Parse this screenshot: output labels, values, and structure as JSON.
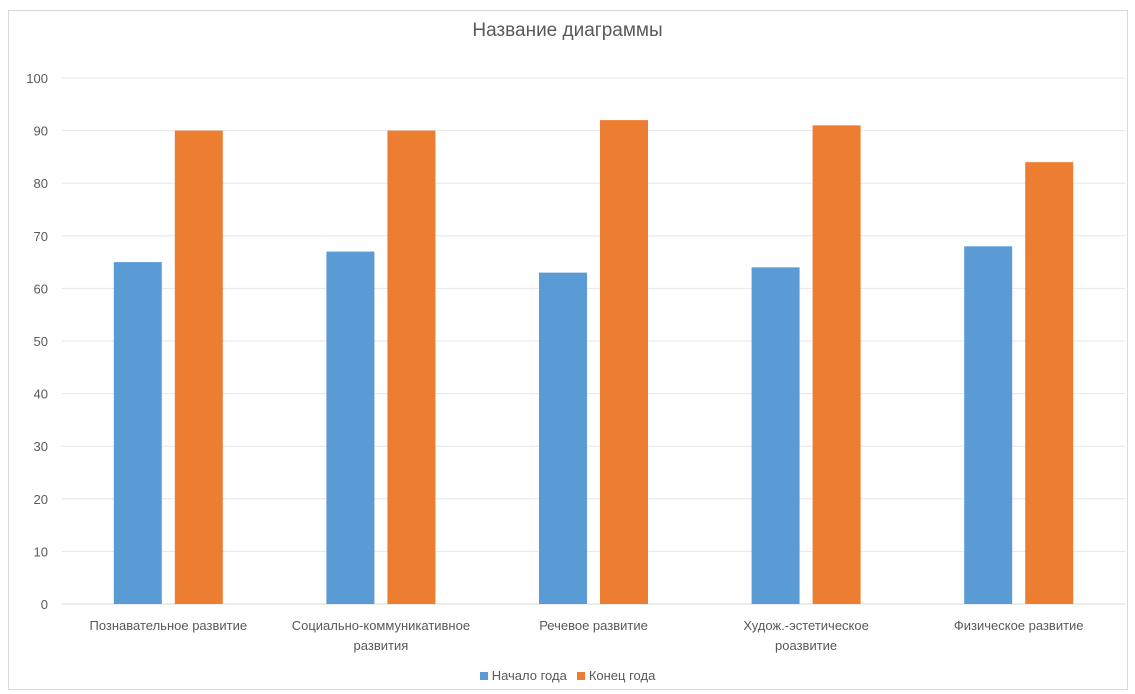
{
  "chart_data": {
    "type": "bar",
    "title": "Название диаграммы",
    "categories": [
      [
        "Познавательное развитие"
      ],
      [
        "Социально-коммуникативное",
        "развития"
      ],
      [
        "Речевое развитие"
      ],
      [
        "Худож.-эстетическое",
        "роазвитие"
      ],
      [
        "Физическое развитие"
      ]
    ],
    "series": [
      {
        "name": "Начало года",
        "values": [
          65,
          67,
          63,
          64,
          68
        ],
        "color": "#5b9bd5"
      },
      {
        "name": "Конец года",
        "values": [
          90,
          90,
          92,
          91,
          84
        ],
        "color": "#ed7d31"
      }
    ],
    "ylim": [
      0,
      100
    ],
    "yticks": [
      0,
      10,
      20,
      30,
      40,
      50,
      60,
      70,
      80,
      90,
      100
    ],
    "grid": true,
    "legend_position": "bottom"
  }
}
